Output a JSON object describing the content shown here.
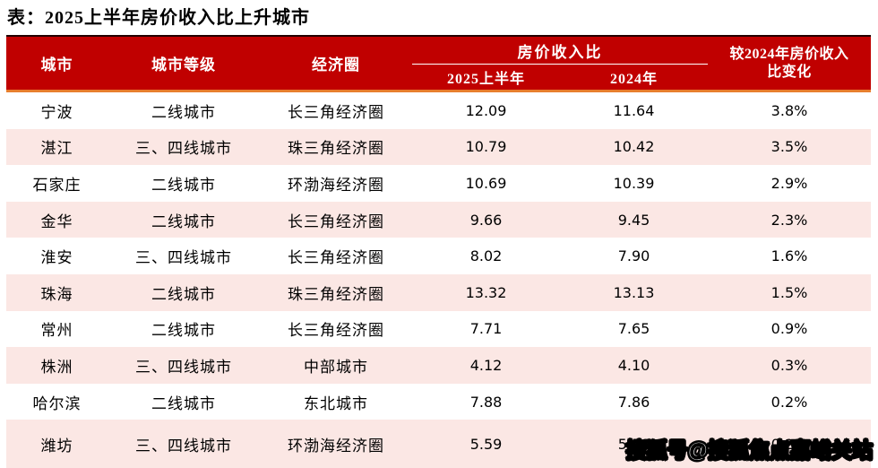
{
  "title": "表：2025上半年房价收入比上升城市",
  "colors": {
    "header_bg": "#C00000",
    "header_text": "#FFFFFF",
    "accent_line_orange": "#E87E2E",
    "header_top_line": "#230000",
    "row_alt_pink": "#FBE7E4",
    "body_text": "#000000"
  },
  "table": {
    "columns": {
      "city": "城市",
      "tier": "城市等级",
      "circle": "经济圈",
      "ratio_group": "房价收入比",
      "h1_2025": "2025上半年",
      "y_2024": "2024年",
      "change_line1": "较2024年房价收入",
      "change_line2": "比变化"
    },
    "rows": [
      {
        "city": "宁波",
        "tier": "二线城市",
        "circle": "长三角经济圈",
        "h1": "12.09",
        "y2024": "11.64",
        "change": "3.8%"
      },
      {
        "city": "湛江",
        "tier": "三、四线城市",
        "circle": "珠三角经济圈",
        "h1": "10.79",
        "y2024": "10.42",
        "change": "3.5%"
      },
      {
        "city": "石家庄",
        "tier": "二线城市",
        "circle": "环渤海经济圈",
        "h1": "10.69",
        "y2024": "10.39",
        "change": "2.9%"
      },
      {
        "city": "金华",
        "tier": "二线城市",
        "circle": "长三角经济圈",
        "h1": "9.66",
        "y2024": "9.45",
        "change": "2.3%"
      },
      {
        "city": "淮安",
        "tier": "三、四线城市",
        "circle": "长三角经济圈",
        "h1": "8.02",
        "y2024": "7.90",
        "change": "1.6%"
      },
      {
        "city": "珠海",
        "tier": "二线城市",
        "circle": "珠三角经济圈",
        "h1": "13.32",
        "y2024": "13.13",
        "change": "1.5%"
      },
      {
        "city": "常州",
        "tier": "二线城市",
        "circle": "长三角经济圈",
        "h1": "7.71",
        "y2024": "7.65",
        "change": "0.9%"
      },
      {
        "city": "株洲",
        "tier": "三、四线城市",
        "circle": "中部城市",
        "h1": "4.12",
        "y2024": "4.10",
        "change": "0.3%"
      },
      {
        "city": "哈尔滨",
        "tier": "二线城市",
        "circle": "东北城市",
        "h1": "7.88",
        "y2024": "7.86",
        "change": "0.2%"
      },
      {
        "city": "潍坊",
        "tier": "三、四线城市",
        "circle": "环渤海经济圈",
        "h1": "5.59",
        "y2024": "5.58",
        "change": "0.2%"
      }
    ]
  },
  "watermark": "搜狐号@搜狐焦点嘉峪关站"
}
